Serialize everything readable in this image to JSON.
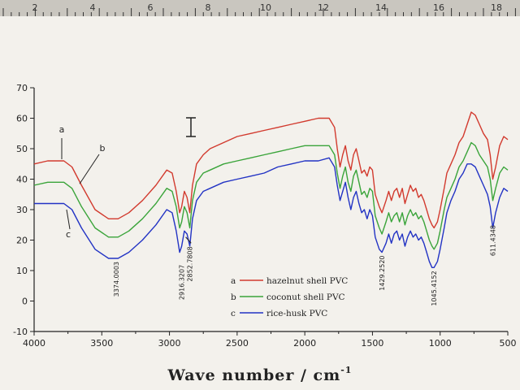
{
  "ruler": {
    "numbers": [
      "2",
      "4",
      "6",
      "8",
      "10",
      "12",
      "14",
      "16",
      "18"
    ]
  },
  "chart_data": {
    "type": "line",
    "title": "",
    "xlabel": "Wave number / cm",
    "xlabel_superscript": "-1",
    "ylabel": "",
    "xlim": [
      4000,
      500
    ],
    "ylim": [
      -10,
      70
    ],
    "x_ticks": [
      4000,
      3500,
      3000,
      2500,
      2000,
      1500,
      1000,
      500
    ],
    "y_ticks": [
      -10,
      0,
      10,
      20,
      30,
      40,
      50,
      60,
      70
    ],
    "x_tick_labels": [
      "4000",
      "3500",
      "3000",
      "2500",
      "2000",
      "1500",
      "1000",
      "500"
    ],
    "y_tick_labels": [
      "-10",
      "0",
      "10",
      "20",
      "30",
      "40",
      "50",
      "60",
      "70"
    ],
    "grid": false,
    "legend_position": "bottom-center",
    "legend": [
      {
        "key": "a",
        "label": "hazelnut shell PVC",
        "color": "#d23a2e"
      },
      {
        "key": "b",
        "label": "coconut shell PVC",
        "color": "#3aa43a"
      },
      {
        "key": "c",
        "label": "rice-husk PVC",
        "color": "#2233c4"
      }
    ],
    "curve_tags": [
      "a",
      "b",
      "c"
    ],
    "peak_labels": [
      {
        "text": "3374.0003",
        "x": 3395,
        "y": 14
      },
      {
        "text": "2916.3207",
        "x": 2910,
        "y": 13
      },
      {
        "text": "2852.7808",
        "x": 2850,
        "y": 19
      },
      {
        "text": "1429.2520",
        "x": 1430,
        "y": 16
      },
      {
        "text": "1045.4152",
        "x": 1045,
        "y": 11
      },
      {
        "text": "611.4348",
        "x": 611,
        "y": 26
      }
    ],
    "series": [
      {
        "name": "hazelnut shell PVC",
        "color": "#d23a2e",
        "points": [
          [
            4000,
            45
          ],
          [
            3900,
            46
          ],
          [
            3780,
            46
          ],
          [
            3720,
            44
          ],
          [
            3650,
            38
          ],
          [
            3550,
            30
          ],
          [
            3450,
            27
          ],
          [
            3380,
            27
          ],
          [
            3300,
            29
          ],
          [
            3200,
            33
          ],
          [
            3100,
            38
          ],
          [
            3020,
            43
          ],
          [
            2980,
            42
          ],
          [
            2950,
            36
          ],
          [
            2925,
            29
          ],
          [
            2910,
            31
          ],
          [
            2890,
            36
          ],
          [
            2870,
            34
          ],
          [
            2850,
            29
          ],
          [
            2830,
            38
          ],
          [
            2800,
            45
          ],
          [
            2750,
            48
          ],
          [
            2700,
            50
          ],
          [
            2600,
            52
          ],
          [
            2500,
            54
          ],
          [
            2400,
            55
          ],
          [
            2300,
            56
          ],
          [
            2200,
            57
          ],
          [
            2100,
            58
          ],
          [
            2000,
            59
          ],
          [
            1900,
            60
          ],
          [
            1820,
            60
          ],
          [
            1780,
            57
          ],
          [
            1760,
            50
          ],
          [
            1740,
            44
          ],
          [
            1720,
            48
          ],
          [
            1700,
            51
          ],
          [
            1680,
            46
          ],
          [
            1660,
            43
          ],
          [
            1640,
            48
          ],
          [
            1620,
            50
          ],
          [
            1600,
            46
          ],
          [
            1580,
            42
          ],
          [
            1560,
            43
          ],
          [
            1540,
            41
          ],
          [
            1520,
            44
          ],
          [
            1500,
            43
          ],
          [
            1480,
            35
          ],
          [
            1450,
            31
          ],
          [
            1430,
            29
          ],
          [
            1400,
            33
          ],
          [
            1380,
            36
          ],
          [
            1360,
            33
          ],
          [
            1340,
            36
          ],
          [
            1320,
            37
          ],
          [
            1300,
            34
          ],
          [
            1280,
            37
          ],
          [
            1260,
            32
          ],
          [
            1240,
            35
          ],
          [
            1220,
            38
          ],
          [
            1200,
            36
          ],
          [
            1180,
            37
          ],
          [
            1160,
            34
          ],
          [
            1140,
            35
          ],
          [
            1120,
            33
          ],
          [
            1100,
            30
          ],
          [
            1080,
            27
          ],
          [
            1060,
            25
          ],
          [
            1045,
            24
          ],
          [
            1020,
            26
          ],
          [
            1000,
            30
          ],
          [
            970,
            37
          ],
          [
            950,
            42
          ],
          [
            920,
            45
          ],
          [
            890,
            48
          ],
          [
            860,
            52
          ],
          [
            830,
            54
          ],
          [
            800,
            58
          ],
          [
            770,
            62
          ],
          [
            740,
            61
          ],
          [
            710,
            58
          ],
          [
            680,
            55
          ],
          [
            650,
            53
          ],
          [
            630,
            48
          ],
          [
            611,
            40
          ],
          [
            590,
            44
          ],
          [
            560,
            51
          ],
          [
            530,
            54
          ],
          [
            500,
            53
          ]
        ]
      },
      {
        "name": "coconut shell PVC",
        "color": "#3aa43a",
        "points": [
          [
            4000,
            38
          ],
          [
            3900,
            39
          ],
          [
            3780,
            39
          ],
          [
            3720,
            37
          ],
          [
            3650,
            31
          ],
          [
            3550,
            24
          ],
          [
            3450,
            21
          ],
          [
            3380,
            21
          ],
          [
            3300,
            23
          ],
          [
            3200,
            27
          ],
          [
            3100,
            32
          ],
          [
            3020,
            37
          ],
          [
            2980,
            36
          ],
          [
            2950,
            31
          ],
          [
            2925,
            24
          ],
          [
            2910,
            26
          ],
          [
            2890,
            31
          ],
          [
            2870,
            29
          ],
          [
            2850,
            24
          ],
          [
            2830,
            33
          ],
          [
            2800,
            39
          ],
          [
            2750,
            42
          ],
          [
            2700,
            43
          ],
          [
            2600,
            45
          ],
          [
            2500,
            46
          ],
          [
            2400,
            47
          ],
          [
            2300,
            48
          ],
          [
            2200,
            49
          ],
          [
            2100,
            50
          ],
          [
            2000,
            51
          ],
          [
            1900,
            51
          ],
          [
            1820,
            51
          ],
          [
            1780,
            48
          ],
          [
            1760,
            42
          ],
          [
            1740,
            37
          ],
          [
            1720,
            41
          ],
          [
            1700,
            44
          ],
          [
            1680,
            39
          ],
          [
            1660,
            36
          ],
          [
            1640,
            41
          ],
          [
            1620,
            43
          ],
          [
            1600,
            39
          ],
          [
            1580,
            35
          ],
          [
            1560,
            36
          ],
          [
            1540,
            34
          ],
          [
            1520,
            37
          ],
          [
            1500,
            36
          ],
          [
            1480,
            28
          ],
          [
            1450,
            24
          ],
          [
            1430,
            22
          ],
          [
            1400,
            26
          ],
          [
            1380,
            29
          ],
          [
            1360,
            26
          ],
          [
            1340,
            28
          ],
          [
            1320,
            29
          ],
          [
            1300,
            26
          ],
          [
            1280,
            29
          ],
          [
            1260,
            25
          ],
          [
            1240,
            28
          ],
          [
            1220,
            30
          ],
          [
            1200,
            28
          ],
          [
            1180,
            29
          ],
          [
            1160,
            27
          ],
          [
            1140,
            28
          ],
          [
            1120,
            26
          ],
          [
            1100,
            23
          ],
          [
            1080,
            20
          ],
          [
            1060,
            18
          ],
          [
            1045,
            17
          ],
          [
            1020,
            19
          ],
          [
            1000,
            23
          ],
          [
            970,
            30
          ],
          [
            950,
            34
          ],
          [
            920,
            37
          ],
          [
            890,
            40
          ],
          [
            860,
            44
          ],
          [
            830,
            46
          ],
          [
            800,
            49
          ],
          [
            770,
            52
          ],
          [
            740,
            51
          ],
          [
            710,
            48
          ],
          [
            680,
            46
          ],
          [
            650,
            44
          ],
          [
            630,
            40
          ],
          [
            611,
            33
          ],
          [
            590,
            37
          ],
          [
            560,
            42
          ],
          [
            530,
            44
          ],
          [
            500,
            43
          ]
        ]
      },
      {
        "name": "rice-husk PVC",
        "color": "#2233c4",
        "points": [
          [
            4000,
            32
          ],
          [
            3900,
            32
          ],
          [
            3780,
            32
          ],
          [
            3720,
            30
          ],
          [
            3650,
            24
          ],
          [
            3550,
            17
          ],
          [
            3450,
            14
          ],
          [
            3380,
            14
          ],
          [
            3300,
            16
          ],
          [
            3200,
            20
          ],
          [
            3100,
            25
          ],
          [
            3020,
            30
          ],
          [
            2980,
            29
          ],
          [
            2950,
            23
          ],
          [
            2925,
            16
          ],
          [
            2910,
            18
          ],
          [
            2890,
            23
          ],
          [
            2870,
            22
          ],
          [
            2850,
            18
          ],
          [
            2830,
            27
          ],
          [
            2800,
            33
          ],
          [
            2750,
            36
          ],
          [
            2700,
            37
          ],
          [
            2600,
            39
          ],
          [
            2500,
            40
          ],
          [
            2400,
            41
          ],
          [
            2300,
            42
          ],
          [
            2200,
            44
          ],
          [
            2100,
            45
          ],
          [
            2000,
            46
          ],
          [
            1900,
            46
          ],
          [
            1820,
            47
          ],
          [
            1780,
            44
          ],
          [
            1760,
            38
          ],
          [
            1740,
            33
          ],
          [
            1720,
            36
          ],
          [
            1700,
            39
          ],
          [
            1680,
            34
          ],
          [
            1660,
            30
          ],
          [
            1640,
            34
          ],
          [
            1620,
            36
          ],
          [
            1600,
            32
          ],
          [
            1580,
            29
          ],
          [
            1560,
            30
          ],
          [
            1540,
            27
          ],
          [
            1520,
            30
          ],
          [
            1500,
            28
          ],
          [
            1480,
            21
          ],
          [
            1450,
            17
          ],
          [
            1430,
            16
          ],
          [
            1400,
            19
          ],
          [
            1380,
            22
          ],
          [
            1360,
            19
          ],
          [
            1340,
            22
          ],
          [
            1320,
            23
          ],
          [
            1300,
            20
          ],
          [
            1280,
            22
          ],
          [
            1260,
            18
          ],
          [
            1240,
            21
          ],
          [
            1220,
            23
          ],
          [
            1200,
            21
          ],
          [
            1180,
            22
          ],
          [
            1160,
            20
          ],
          [
            1140,
            21
          ],
          [
            1120,
            19
          ],
          [
            1100,
            16
          ],
          [
            1080,
            13
          ],
          [
            1060,
            11
          ],
          [
            1045,
            11
          ],
          [
            1020,
            13
          ],
          [
            1000,
            17
          ],
          [
            970,
            24
          ],
          [
            950,
            29
          ],
          [
            920,
            33
          ],
          [
            890,
            36
          ],
          [
            860,
            40
          ],
          [
            830,
            42
          ],
          [
            800,
            45
          ],
          [
            770,
            45
          ],
          [
            740,
            44
          ],
          [
            710,
            41
          ],
          [
            680,
            38
          ],
          [
            650,
            35
          ],
          [
            630,
            31
          ],
          [
            611,
            24
          ],
          [
            590,
            29
          ],
          [
            560,
            34
          ],
          [
            530,
            37
          ],
          [
            500,
            36
          ]
        ]
      }
    ]
  }
}
